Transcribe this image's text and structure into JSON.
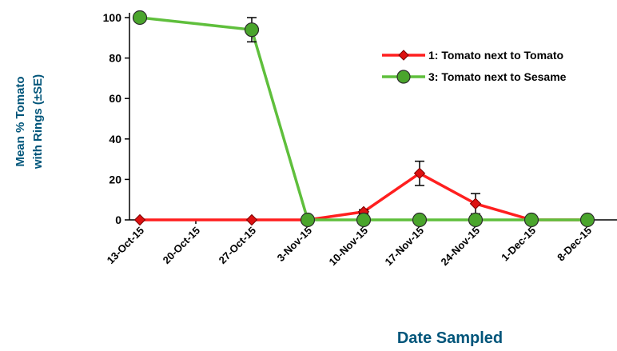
{
  "chart_data": {
    "type": "line",
    "xlabel": "Date Sampled",
    "ylabel_lines": [
      "Mean % Tomato",
      "with Rings (±SE)"
    ],
    "ylim": [
      0,
      100
    ],
    "yticks": [
      "0",
      "20",
      "40",
      "60",
      "80",
      "100"
    ],
    "categories": [
      "13-Oct-15",
      "20-Oct-15",
      "27-Oct-15",
      "3-Nov-15",
      "10-Nov-15",
      "17-Nov-15",
      "24-Nov-15",
      "1-Dec-15",
      "8-Dec-15"
    ],
    "grid": false,
    "legend_position": "top-right",
    "series": [
      {
        "name": "1: Tomato next to Tomato",
        "color": "#ff1f1f",
        "marker_color": "#dd1111",
        "marker": "diamond",
        "x": [
          "13-Oct-15",
          "27-Oct-15",
          "3-Nov-15",
          "10-Nov-15",
          "17-Nov-15",
          "24-Nov-15",
          "1-Dec-15",
          "8-Dec-15"
        ],
        "values": [
          0,
          0,
          0,
          4,
          23,
          8,
          0,
          0
        ],
        "error": [
          0,
          0,
          0,
          1,
          6,
          5,
          0,
          0
        ]
      },
      {
        "name": "3: Tomato next to Sesame",
        "color": "#5fbf3c",
        "marker_color": "#4aa52c",
        "marker": "circle",
        "x": [
          "13-Oct-15",
          "27-Oct-15",
          "3-Nov-15",
          "10-Nov-15",
          "17-Nov-15",
          "24-Nov-15",
          "1-Dec-15",
          "8-Dec-15"
        ],
        "values": [
          100,
          94,
          0,
          0,
          0,
          0,
          0,
          0
        ],
        "error": [
          0,
          6,
          0,
          0,
          0,
          0,
          0,
          0
        ]
      }
    ]
  }
}
